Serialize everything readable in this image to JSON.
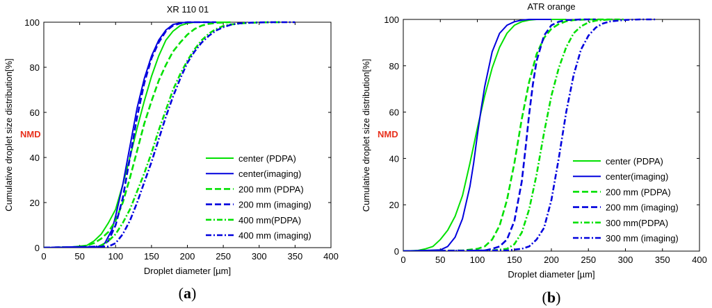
{
  "chart_data": [
    {
      "type": "line",
      "title": "XR 110 01",
      "panel_label_open": "(",
      "panel_label": "a",
      "panel_label_close": ")",
      "xlabel": "Droplet diameter [µm]",
      "ylabel": "Cumulative droplet size distribution[%]",
      "annotation": "NMD",
      "xlim": [
        0,
        400
      ],
      "ylim": [
        0,
        100
      ],
      "xticks": [
        0,
        50,
        100,
        150,
        200,
        250,
        300,
        350,
        400
      ],
      "yticks": [
        0,
        20,
        40,
        60,
        80,
        100
      ],
      "grid": false,
      "legend_position": "bottom-right",
      "series": [
        {
          "name": "center (PDPA)",
          "color": "#00e000",
          "style": "solid",
          "x": [
            0,
            40,
            60,
            70,
            80,
            90,
            100,
            110,
            120,
            130,
            140,
            150,
            160,
            170,
            180,
            190,
            200,
            210,
            220,
            240,
            260
          ],
          "y": [
            0,
            0.3,
            1,
            3,
            6,
            11,
            17,
            28,
            40,
            53,
            65,
            76,
            85,
            92,
            96,
            98.5,
            99.5,
            100,
            100,
            100,
            100
          ]
        },
        {
          "name": "center(imaging)",
          "color": "#0000dd",
          "style": "solid",
          "x": [
            0,
            75,
            85,
            95,
            100,
            110,
            120,
            130,
            140,
            150,
            160,
            170,
            180,
            190,
            200,
            210,
            220,
            240
          ],
          "y": [
            0,
            0.3,
            2,
            8,
            14,
            28,
            45,
            62,
            75,
            85,
            92,
            96.5,
            99,
            99.7,
            100,
            100,
            100,
            100
          ]
        },
        {
          "name": "200 mm (PDPA)",
          "color": "#00e000",
          "style": "dashed",
          "x": [
            0,
            50,
            60,
            70,
            80,
            90,
            100,
            110,
            120,
            130,
            140,
            150,
            160,
            170,
            180,
            190,
            200,
            210,
            220,
            230,
            240,
            260
          ],
          "y": [
            0,
            0.3,
            1,
            2,
            4,
            7,
            12,
            20,
            31,
            43,
            55,
            65,
            74,
            81,
            87,
            91,
            94.5,
            97,
            98.5,
            99.3,
            99.7,
            100
          ]
        },
        {
          "name": "200 mm (imaging)",
          "color": "#0000dd",
          "style": "dashed",
          "x": [
            0,
            80,
            90,
            100,
            110,
            120,
            130,
            140,
            150,
            160,
            170,
            180,
            190,
            200,
            210,
            220,
            240
          ],
          "y": [
            0,
            0.5,
            3,
            10,
            22,
            40,
            58,
            73,
            84,
            91,
            96,
            98.5,
            99.5,
            100,
            100,
            100,
            100
          ]
        },
        {
          "name": "400 mm(PDPA)",
          "color": "#00e000",
          "style": "dashdot",
          "x": [
            0,
            70,
            80,
            90,
            100,
            110,
            120,
            130,
            140,
            150,
            160,
            170,
            180,
            190,
            200,
            210,
            220,
            230,
            240,
            250,
            260,
            280,
            300,
            330
          ],
          "y": [
            0,
            0.3,
            1,
            3,
            6,
            11,
            17,
            25,
            33,
            42,
            52,
            61,
            70,
            77,
            83,
            88,
            92,
            95,
            97,
            98.3,
            99,
            99.6,
            99.9,
            100
          ]
        },
        {
          "name": "400 mm (imaging)",
          "color": "#0000dd",
          "style": "dashdot",
          "x": [
            0,
            90,
            100,
            110,
            120,
            130,
            140,
            150,
            160,
            170,
            180,
            190,
            200,
            210,
            220,
            230,
            240,
            250,
            260,
            270,
            280,
            300,
            320,
            350
          ],
          "y": [
            0,
            0.5,
            2,
            6,
            12,
            20,
            29,
            38,
            48,
            58,
            67,
            75,
            82,
            87,
            91,
            94,
            96.3,
            97.8,
            98.8,
            99.4,
            99.7,
            99.9,
            100,
            100
          ]
        }
      ]
    },
    {
      "type": "line",
      "title": "ATR orange",
      "panel_label_open": "(",
      "panel_label": "b",
      "panel_label_close": ")",
      "xlabel": "Droplet diameter [µm]",
      "ylabel": "Cumulative droplet size distribution[%]",
      "annotation": "NMD",
      "xlim": [
        0,
        400
      ],
      "ylim": [
        0,
        100
      ],
      "xticks": [
        0,
        50,
        100,
        150,
        200,
        250,
        300,
        350,
        400
      ],
      "yticks": [
        0,
        20,
        40,
        60,
        80,
        100
      ],
      "grid": false,
      "legend_position": "bottom-right",
      "series": [
        {
          "name": "center (PDPA)",
          "color": "#00e000",
          "style": "solid",
          "x": [
            0,
            20,
            30,
            40,
            50,
            60,
            70,
            80,
            90,
            100,
            110,
            120,
            130,
            140,
            150,
            160,
            170,
            180,
            190,
            200,
            220
          ],
          "y": [
            0,
            0.3,
            1,
            2,
            5,
            9,
            15,
            24,
            38,
            53,
            67,
            79,
            88,
            94,
            97.5,
            99,
            99.7,
            100,
            100,
            100,
            100
          ]
        },
        {
          "name": "center(imaging)",
          "color": "#0000dd",
          "style": "solid",
          "x": [
            0,
            50,
            60,
            70,
            80,
            90,
            95,
            100,
            105,
            110,
            120,
            130,
            140,
            150,
            160,
            170,
            180,
            200
          ],
          "y": [
            0,
            0.5,
            2,
            6,
            14,
            28,
            38,
            50,
            61,
            71,
            86,
            94,
            97.5,
            99,
            99.7,
            100,
            100,
            100
          ]
        },
        {
          "name": "200 mm (PDPA)",
          "color": "#00e000",
          "style": "dashed",
          "x": [
            0,
            80,
            100,
            110,
            120,
            130,
            140,
            150,
            160,
            170,
            180,
            190,
            200,
            210,
            220,
            230,
            250,
            280
          ],
          "y": [
            0,
            0.3,
            1,
            2,
            5,
            11,
            22,
            38,
            57,
            73,
            85,
            92,
            96,
            98,
            99.2,
            99.7,
            100,
            100
          ]
        },
        {
          "name": "200 mm (imaging)",
          "color": "#0000dd",
          "style": "dashed",
          "x": [
            0,
            110,
            120,
            130,
            140,
            150,
            160,
            165,
            170,
            175,
            180,
            190,
            200,
            210,
            220,
            240,
            260
          ],
          "y": [
            0,
            0.3,
            1,
            2,
            5,
            13,
            30,
            44,
            59,
            72,
            82,
            93,
            97.5,
            99,
            99.7,
            100,
            100
          ]
        },
        {
          "name": "300 mm(PDPA)",
          "color": "#00e000",
          "style": "dashdot",
          "x": [
            0,
            120,
            140,
            150,
            160,
            170,
            180,
            190,
            200,
            210,
            220,
            230,
            240,
            250,
            260,
            280,
            300
          ],
          "y": [
            0,
            0.3,
            1,
            3,
            8,
            18,
            33,
            51,
            67,
            79,
            88,
            94,
            97,
            98.7,
            99.5,
            100,
            100
          ]
        },
        {
          "name": "300 mm (imaging)",
          "color": "#0000dd",
          "style": "dashdot",
          "x": [
            0,
            140,
            160,
            170,
            180,
            190,
            200,
            210,
            220,
            230,
            240,
            250,
            260,
            270,
            280,
            300,
            320,
            340
          ],
          "y": [
            0,
            0.3,
            1,
            2,
            5,
            10,
            22,
            40,
            60,
            76,
            87,
            93,
            96.5,
            98.3,
            99.2,
            99.8,
            100,
            100
          ]
        }
      ]
    }
  ]
}
